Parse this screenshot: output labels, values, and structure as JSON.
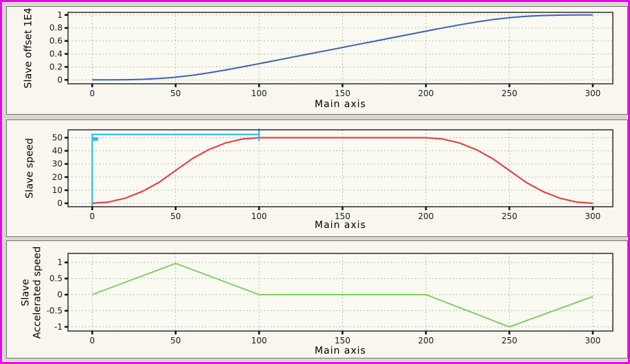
{
  "window": {
    "border_color": "#ee00ee",
    "background_color": "#d8d6ce",
    "panel_background": "#f8f6ee"
  },
  "colors": {
    "offset_line": "#3a62b0",
    "speed_actual_line": "#e54545",
    "speed_set_line": "#2ab6e8",
    "accel_line": "#7dcf5e",
    "grid": "#b9b9b9",
    "frame": "#4d4d4d"
  },
  "chart_data": [
    {
      "type": "line",
      "name": "slave-offset-chart",
      "title": "",
      "xlabel": "Main axis",
      "ylabel": "Slave offset  1E4",
      "x_ticks": [
        0,
        50,
        100,
        150,
        200,
        250,
        300
      ],
      "x_tick_labels": [
        "0",
        "50",
        "100",
        "150",
        "200",
        "250",
        "300"
      ],
      "y_ticks": [
        0,
        0.2,
        0.4,
        0.6,
        0.8,
        1
      ],
      "y_tick_labels": [
        "0",
        "0.2",
        "0.4",
        "0.6",
        "0.8",
        "1"
      ],
      "xlim": [
        -14.5,
        312
      ],
      "ylim": [
        -0.06,
        1.04
      ],
      "grid": true,
      "series": [
        {
          "name": "slave-offset",
          "color": "#3a62b0",
          "width": 2,
          "points": [
            [
              0,
              0
            ],
            [
              10,
              0.0003
            ],
            [
              20,
              0.0027
            ],
            [
              30,
              0.009
            ],
            [
              40,
              0.0213
            ],
            [
              50,
              0.0417
            ],
            [
              60,
              0.0713
            ],
            [
              70,
              0.109
            ],
            [
              80,
              0.1527
            ],
            [
              90,
              0.2003
            ],
            [
              100,
              0.25
            ],
            [
              110,
              0.3
            ],
            [
              120,
              0.35
            ],
            [
              130,
              0.4
            ],
            [
              140,
              0.45
            ],
            [
              150,
              0.5
            ],
            [
              160,
              0.55
            ],
            [
              170,
              0.6
            ],
            [
              180,
              0.65
            ],
            [
              190,
              0.7
            ],
            [
              200,
              0.75
            ],
            [
              210,
              0.7997
            ],
            [
              220,
              0.8473
            ],
            [
              230,
              0.891
            ],
            [
              240,
              0.9287
            ],
            [
              250,
              0.9583
            ],
            [
              260,
              0.9787
            ],
            [
              270,
              0.991
            ],
            [
              280,
              0.9973
            ],
            [
              290,
              0.9997
            ],
            [
              300,
              1
            ]
          ]
        }
      ]
    },
    {
      "type": "line",
      "name": "slave-speed-chart",
      "title": "",
      "xlabel": "Main axis",
      "ylabel": "Slave speed",
      "x_ticks": [
        0,
        50,
        100,
        150,
        200,
        250,
        300
      ],
      "x_tick_labels": [
        "0",
        "50",
        "100",
        "150",
        "200",
        "250",
        "300"
      ],
      "y_ticks": [
        0,
        10,
        20,
        30,
        40,
        50
      ],
      "y_tick_labels": [
        "0",
        "10",
        "20",
        "30",
        "40",
        "50"
      ],
      "xlim": [
        -14.5,
        312
      ],
      "ylim": [
        -2.6,
        56
      ],
      "grid": true,
      "series": [
        {
          "name": "slave-speed-set",
          "color": "#2ab6e8",
          "width": 2,
          "points": [
            [
              0,
              -2.8
            ],
            [
              0,
              52.5
            ],
            [
              100,
              52.5
            ]
          ]
        },
        {
          "name": "slave-speed-actual",
          "color": "#e54545",
          "width": 2.2,
          "points": [
            [
              0,
              0
            ],
            [
              10,
              1
            ],
            [
              20,
              4
            ],
            [
              30,
              9
            ],
            [
              40,
              16
            ],
            [
              50,
              25
            ],
            [
              60,
              34
            ],
            [
              70,
              41
            ],
            [
              80,
              46
            ],
            [
              90,
              49
            ],
            [
              100,
              50
            ],
            [
              150,
              50
            ],
            [
              200,
              50
            ],
            [
              210,
              49
            ],
            [
              220,
              46
            ],
            [
              230,
              41
            ],
            [
              240,
              34
            ],
            [
              250,
              25
            ],
            [
              260,
              16
            ],
            [
              270,
              9
            ],
            [
              280,
              4
            ],
            [
              290,
              1
            ],
            [
              300,
              0
            ]
          ]
        }
      ],
      "extra_segments": [
        {
          "name": "set-speed-end-cap",
          "color": "#2ab6e8",
          "width": 2,
          "points": [
            [
              100,
              47.5
            ],
            [
              100,
              57
            ]
          ]
        },
        {
          "name": "set-speed-start-marker",
          "color": "#2ab6e8",
          "width": 5,
          "points": [
            [
              0.5,
              49
            ],
            [
              3.5,
              49
            ]
          ]
        }
      ]
    },
    {
      "type": "line",
      "name": "slave-accelerated-speed-chart",
      "title": "",
      "xlabel": "Main axis",
      "ylabel": "Slave\nAccelerated speed",
      "x_ticks": [
        0,
        50,
        100,
        150,
        200,
        250,
        300
      ],
      "x_tick_labels": [
        "0",
        "50",
        "100",
        "150",
        "200",
        "250",
        "300"
      ],
      "y_ticks": [
        -1,
        -0.5,
        0,
        0.5,
        1
      ],
      "y_tick_labels": [
        "-1",
        "-0.5",
        "0",
        "0.5",
        "1"
      ],
      "xlim": [
        -14.5,
        312
      ],
      "ylim": [
        -1.13,
        1.28
      ],
      "grid": true,
      "series": [
        {
          "name": "slave-accelerated-speed",
          "color": "#7dcf5e",
          "width": 2,
          "points": [
            [
              0,
              0
            ],
            [
              50,
              0.97
            ],
            [
              100,
              0
            ],
            [
              200,
              0
            ],
            [
              250,
              -1
            ],
            [
              300,
              -0.06
            ]
          ]
        }
      ]
    }
  ]
}
